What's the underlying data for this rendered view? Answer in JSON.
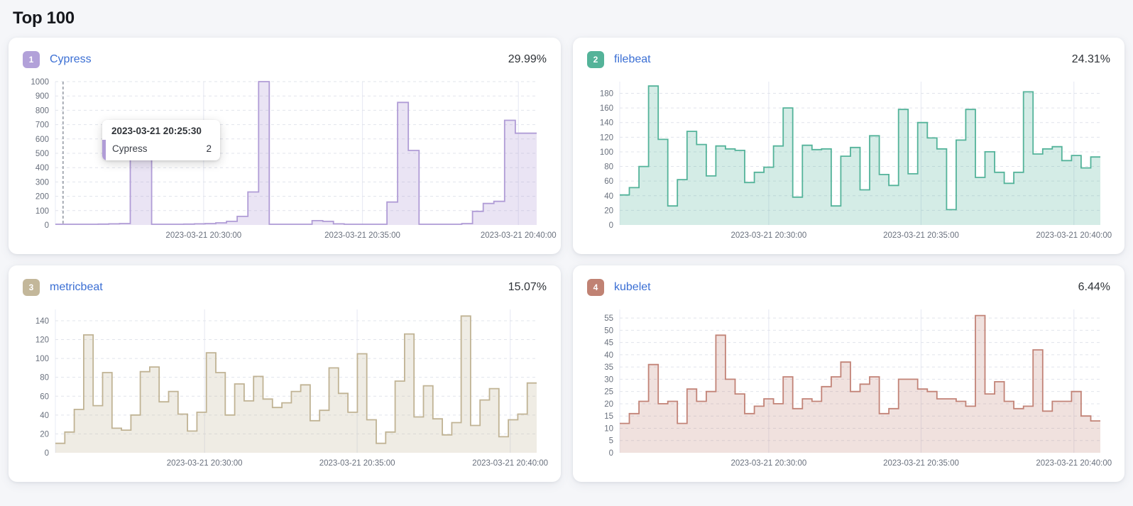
{
  "page": {
    "title": "Top 100"
  },
  "axis": {
    "label_color": "#69707d",
    "grid_dash_color": "#e1e4eb",
    "grid_vertical_color": "#e9ebf4",
    "crosshair_color": "#757d8a"
  },
  "chart_data": [
    {
      "type": "area",
      "rank": "1",
      "name": "Cypress",
      "percent": "29.99%",
      "colors": {
        "badge": "#b2a1d9",
        "line": "#b09cd6",
        "fill": "rgba(176,156,214,0.27)"
      },
      "title": "Cypress events over time",
      "xlabel": "",
      "ylabel": "",
      "ylim": [
        0,
        1000
      ],
      "yticks": [
        0,
        100,
        200,
        300,
        400,
        500,
        600,
        700,
        800,
        900,
        1000
      ],
      "ymax_render": 1000,
      "xticks": [
        {
          "label": "2023-03-21 20:30:00",
          "f": 0.308
        },
        {
          "label": "2023-03-21 20:35:00",
          "f": 0.638
        },
        {
          "label": "2023-03-21 20:40:00",
          "f": 0.962
        }
      ],
      "values": [
        5,
        5,
        5,
        5,
        6,
        8,
        10,
        500,
        500,
        5,
        5,
        5,
        6,
        8,
        10,
        15,
        25,
        60,
        230,
        1000,
        5,
        5,
        5,
        5,
        30,
        25,
        8,
        5,
        5,
        5,
        5,
        160,
        855,
        520,
        5,
        5,
        5,
        5,
        10,
        95,
        150,
        165,
        730,
        640,
        640
      ],
      "crosshair_f": 0.016,
      "tooltip": {
        "title": "2023-03-21 20:25:30",
        "series": "Cypress",
        "value": "2"
      }
    },
    {
      "type": "area",
      "rank": "2",
      "name": "filebeat",
      "percent": "24.31%",
      "colors": {
        "badge": "#54b399",
        "line": "#54b39a",
        "fill": "rgba(84,179,154,0.25)"
      },
      "title": "filebeat events over time",
      "xlabel": "",
      "ylabel": "",
      "ylim": [
        0,
        180
      ],
      "yticks": [
        0,
        20,
        40,
        60,
        80,
        100,
        120,
        140,
        160,
        180
      ],
      "ymax_render": 196,
      "xticks": [
        {
          "label": "2023-03-21 20:30:00",
          "f": 0.31
        },
        {
          "label": "2023-03-21 20:35:00",
          "f": 0.627
        },
        {
          "label": "2023-03-21 20:40:00",
          "f": 0.945
        }
      ],
      "values": [
        41,
        51,
        80,
        190,
        117,
        26,
        62,
        128,
        110,
        67,
        108,
        104,
        102,
        58,
        72,
        79,
        108,
        160,
        38,
        109,
        103,
        104,
        26,
        94,
        106,
        48,
        122,
        69,
        54,
        158,
        70,
        140,
        119,
        104,
        21,
        116,
        158,
        65,
        100,
        72,
        57,
        72,
        182,
        97,
        104,
        107,
        88,
        95,
        78,
        93
      ],
      "crosshair_f": null,
      "tooltip": null
    },
    {
      "type": "area",
      "rank": "3",
      "name": "metricbeat",
      "percent": "15.07%",
      "colors": {
        "badge": "#c3b79a",
        "line": "#c0b394",
        "fill": "rgba(192,179,148,0.25)"
      },
      "title": "metricbeat events over time",
      "xlabel": "",
      "ylabel": "",
      "ylim": [
        0,
        140
      ],
      "yticks": [
        0,
        20,
        40,
        60,
        80,
        100,
        120,
        140
      ],
      "ymax_render": 152,
      "xticks": [
        {
          "label": "2023-03-21 20:30:00",
          "f": 0.31
        },
        {
          "label": "2023-03-21 20:35:00",
          "f": 0.627
        },
        {
          "label": "2023-03-21 20:40:00",
          "f": 0.945
        }
      ],
      "values": [
        10,
        22,
        46,
        125,
        50,
        85,
        26,
        24,
        40,
        86,
        91,
        54,
        65,
        41,
        23,
        43,
        106,
        85,
        40,
        73,
        55,
        81,
        57,
        48,
        53,
        65,
        72,
        34,
        45,
        90,
        63,
        43,
        105,
        35,
        10,
        22,
        76,
        126,
        38,
        71,
        36,
        19,
        32,
        145,
        29,
        56,
        68,
        17,
        35,
        41,
        74
      ],
      "crosshair_f": null,
      "tooltip": null
    },
    {
      "type": "area",
      "rank": "4",
      "name": "kubelet",
      "percent": "6.44%",
      "colors": {
        "badge": "#c08273",
        "line": "#c28377",
        "fill": "rgba(194,131,119,0.24)"
      },
      "title": "kubelet events over time",
      "xlabel": "",
      "ylabel": "",
      "ylim": [
        0,
        55
      ],
      "yticks": [
        0,
        5,
        10,
        15,
        20,
        25,
        30,
        35,
        40,
        45,
        50,
        55
      ],
      "ymax_render": 58.5,
      "xticks": [
        {
          "label": "2023-03-21 20:30:00",
          "f": 0.31
        },
        {
          "label": "2023-03-21 20:35:00",
          "f": 0.627
        },
        {
          "label": "2023-03-21 20:40:00",
          "f": 0.945
        }
      ],
      "values": [
        12,
        16,
        21,
        36,
        20,
        21,
        12,
        26,
        21,
        25,
        48,
        30,
        24,
        16,
        19,
        22,
        20,
        31,
        18,
        22,
        21,
        27,
        31,
        37,
        25,
        28,
        31,
        16,
        18,
        30,
        30,
        26,
        25,
        22,
        22,
        21,
        19,
        56,
        24,
        29,
        21,
        18,
        19,
        42,
        17,
        21,
        21,
        25,
        15,
        13
      ],
      "crosshair_f": null,
      "tooltip": null
    }
  ]
}
